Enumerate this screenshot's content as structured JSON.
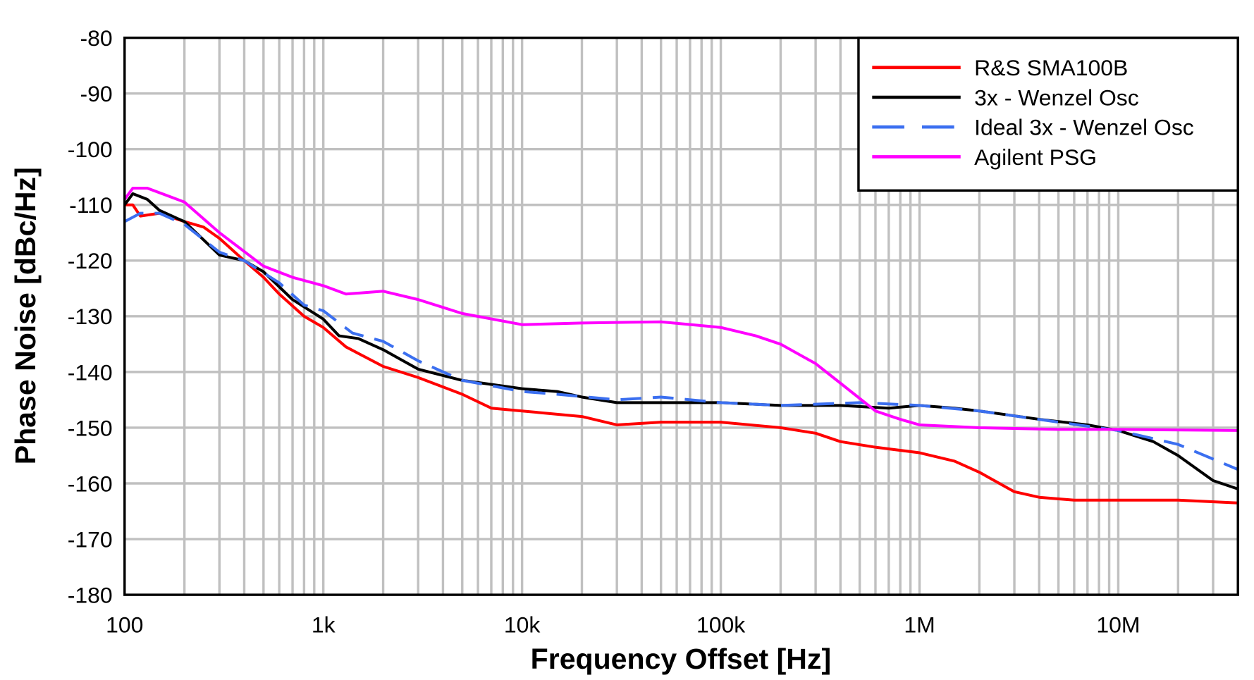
{
  "chart_data": {
    "type": "line",
    "xlabel": "Frequency Offset [Hz]",
    "ylabel": "Phase Noise [dBc/Hz]",
    "x_scale": "log",
    "xlim": [
      100,
      40000000
    ],
    "ylim": [
      -180,
      -80
    ],
    "grid": true,
    "legend_position": "top-right",
    "x_ticks": [
      {
        "value": 100,
        "label": "100"
      },
      {
        "value": 1000,
        "label": "1k"
      },
      {
        "value": 10000,
        "label": "10k"
      },
      {
        "value": 100000,
        "label": "100k"
      },
      {
        "value": 1000000,
        "label": "1M"
      },
      {
        "value": 10000000,
        "label": "10M"
      }
    ],
    "y_ticks": [
      -80,
      -90,
      -100,
      -110,
      -120,
      -130,
      -140,
      -150,
      -160,
      -170,
      -180
    ],
    "series": [
      {
        "name": "R&S SMA100B",
        "color": "#ff0000",
        "dash": false,
        "points": [
          [
            100,
            -110
          ],
          [
            110,
            -110
          ],
          [
            120,
            -112
          ],
          [
            150,
            -111.5
          ],
          [
            200,
            -113
          ],
          [
            250,
            -114
          ],
          [
            300,
            -116
          ],
          [
            400,
            -120
          ],
          [
            500,
            -123
          ],
          [
            600,
            -126
          ],
          [
            800,
            -130
          ],
          [
            1000,
            -132
          ],
          [
            1300,
            -135.5
          ],
          [
            2000,
            -139
          ],
          [
            3000,
            -141
          ],
          [
            5000,
            -144
          ],
          [
            7000,
            -146.5
          ],
          [
            10000,
            -147
          ],
          [
            20000,
            -148
          ],
          [
            30000,
            -149.5
          ],
          [
            50000,
            -149
          ],
          [
            100000,
            -149
          ],
          [
            200000,
            -150
          ],
          [
            300000,
            -151
          ],
          [
            400000,
            -152.5
          ],
          [
            600000,
            -153.5
          ],
          [
            1000000,
            -154.5
          ],
          [
            1500000,
            -156
          ],
          [
            2000000,
            -158
          ],
          [
            3000000,
            -161.5
          ],
          [
            4000000,
            -162.5
          ],
          [
            6000000,
            -163
          ],
          [
            10000000,
            -163
          ],
          [
            20000000,
            -163
          ],
          [
            40000000,
            -163.5
          ]
        ]
      },
      {
        "name": "3x - Wenzel Osc",
        "color": "#000000",
        "dash": false,
        "points": [
          [
            100,
            -110
          ],
          [
            110,
            -108
          ],
          [
            130,
            -109
          ],
          [
            150,
            -111
          ],
          [
            200,
            -113
          ],
          [
            300,
            -119
          ],
          [
            400,
            -120
          ],
          [
            500,
            -122
          ],
          [
            700,
            -127
          ],
          [
            1000,
            -130.5
          ],
          [
            1200,
            -133.5
          ],
          [
            1500,
            -134
          ],
          [
            2000,
            -136
          ],
          [
            3000,
            -139.5
          ],
          [
            5000,
            -141.5
          ],
          [
            10000,
            -143
          ],
          [
            15000,
            -143.5
          ],
          [
            20000,
            -144.5
          ],
          [
            30000,
            -145.5
          ],
          [
            50000,
            -145.5
          ],
          [
            100000,
            -145.5
          ],
          [
            200000,
            -146
          ],
          [
            400000,
            -146
          ],
          [
            700000,
            -146.5
          ],
          [
            1000000,
            -146
          ],
          [
            1500000,
            -146.5
          ],
          [
            2000000,
            -147
          ],
          [
            4000000,
            -148.5
          ],
          [
            7000000,
            -149.5
          ],
          [
            10000000,
            -150.5
          ],
          [
            15000000,
            -152.5
          ],
          [
            20000000,
            -155
          ],
          [
            30000000,
            -159.5
          ],
          [
            40000000,
            -161
          ]
        ]
      },
      {
        "name": "Ideal 3x - Wenzel Osc",
        "color": "#3b6ff0",
        "dash": true,
        "points": [
          [
            100,
            -113
          ],
          [
            120,
            -111.5
          ],
          [
            150,
            -111.5
          ],
          [
            200,
            -113.5
          ],
          [
            300,
            -118.5
          ],
          [
            400,
            -120
          ],
          [
            600,
            -124
          ],
          [
            800,
            -128
          ],
          [
            1000,
            -129
          ],
          [
            1400,
            -133
          ],
          [
            2000,
            -134.5
          ],
          [
            3000,
            -138
          ],
          [
            5000,
            -141.5
          ],
          [
            10000,
            -143.5
          ],
          [
            15000,
            -144
          ],
          [
            30000,
            -145
          ],
          [
            50000,
            -144.5
          ],
          [
            100000,
            -145.5
          ],
          [
            200000,
            -146
          ],
          [
            500000,
            -145.5
          ],
          [
            1000000,
            -146
          ],
          [
            2000000,
            -147
          ],
          [
            5000000,
            -149
          ],
          [
            10000000,
            -150.5
          ],
          [
            20000000,
            -153
          ],
          [
            40000000,
            -157.5
          ]
        ]
      },
      {
        "name": "Agilent PSG",
        "color": "#ff00ff",
        "dash": false,
        "points": [
          [
            100,
            -109
          ],
          [
            110,
            -107
          ],
          [
            130,
            -107
          ],
          [
            200,
            -109.5
          ],
          [
            300,
            -115
          ],
          [
            500,
            -121
          ],
          [
            700,
            -123
          ],
          [
            1000,
            -124.5
          ],
          [
            1300,
            -126
          ],
          [
            2000,
            -125.5
          ],
          [
            3000,
            -127
          ],
          [
            5000,
            -129.5
          ],
          [
            10000,
            -131.5
          ],
          [
            20000,
            -131.2
          ],
          [
            50000,
            -131
          ],
          [
            100000,
            -132
          ],
          [
            150000,
            -133.5
          ],
          [
            200000,
            -135
          ],
          [
            300000,
            -138.5
          ],
          [
            400000,
            -142
          ],
          [
            600000,
            -147
          ],
          [
            800000,
            -148.5
          ],
          [
            1000000,
            -149.5
          ],
          [
            2000000,
            -150
          ],
          [
            5000000,
            -150.3
          ],
          [
            10000000,
            -150.3
          ],
          [
            40000000,
            -150.5
          ]
        ]
      }
    ]
  }
}
